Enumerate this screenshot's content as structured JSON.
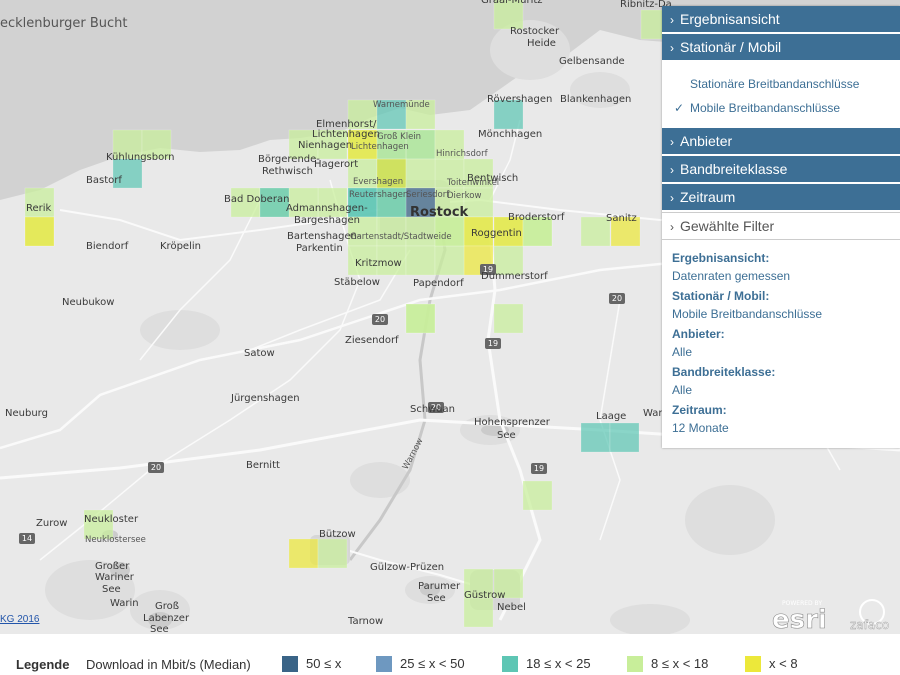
{
  "map": {
    "water_label": "ecklenburger Bucht",
    "places": [
      {
        "name": "Rerik",
        "cls": "place"
      },
      {
        "name": "Kühlungsborn",
        "cls": "place"
      },
      {
        "name": "Bastorf",
        "cls": "place"
      },
      {
        "name": "Bad Doberan",
        "cls": "place"
      },
      {
        "name": "Biendorf",
        "cls": "place"
      },
      {
        "name": "Kröpelin",
        "cls": "place"
      },
      {
        "name": "Neubukow",
        "cls": "place"
      },
      {
        "name": "Nienhagen",
        "cls": "place"
      },
      {
        "name": "Elmenhorst/",
        "cls": "place"
      },
      {
        "name": "Lichtenhagen",
        "cls": "place"
      },
      {
        "name": "Hagerort",
        "cls": "place"
      },
      {
        "name": "Börgerende-",
        "cls": "place"
      },
      {
        "name": "Rethwisch",
        "cls": "place"
      },
      {
        "name": "Admannshagen-",
        "cls": "place"
      },
      {
        "name": "Bargeshagen",
        "cls": "place"
      },
      {
        "name": "Bartenshagen-",
        "cls": "place"
      },
      {
        "name": "Parkentin",
        "cls": "place"
      },
      {
        "name": "Warnemünde",
        "cls": "place-sm"
      },
      {
        "name": "Groß Klein",
        "cls": "place-sm"
      },
      {
        "name": "Lichtenhagen",
        "cls": "place-sm"
      },
      {
        "name": "Evershagen",
        "cls": "place-sm"
      },
      {
        "name": "Reutershagen",
        "cls": "place-sm"
      },
      {
        "name": "Gartenstadt/Stadtweide",
        "cls": "place-sm"
      },
      {
        "name": "Hinrichsdorf",
        "cls": "place-sm"
      },
      {
        "name": "Toitenwinkel",
        "cls": "place-sm"
      },
      {
        "name": "Dierkow",
        "cls": "place-sm"
      },
      {
        "name": "Seriesdorf",
        "cls": "place-sm"
      },
      {
        "name": "Rostock",
        "cls": "place-lg"
      },
      {
        "name": "Bentwisch",
        "cls": "place"
      },
      {
        "name": "Broderstorf",
        "cls": "place"
      },
      {
        "name": "Roggentin",
        "cls": "place"
      },
      {
        "name": "Sanitz",
        "cls": "place"
      },
      {
        "name": "Rövershagen",
        "cls": "place"
      },
      {
        "name": "Mönchhagen",
        "cls": "place"
      },
      {
        "name": "Blankenhagen",
        "cls": "place"
      },
      {
        "name": "Gelbensande",
        "cls": "place"
      },
      {
        "name": "Rostocker",
        "cls": "place"
      },
      {
        "name": "Heide",
        "cls": "place"
      },
      {
        "name": "Kritzmow",
        "cls": "place"
      },
      {
        "name": "Stäbelow",
        "cls": "place"
      },
      {
        "name": "Papendorf",
        "cls": "place"
      },
      {
        "name": "Dummerstorf",
        "cls": "place"
      },
      {
        "name": "Ziesendorf",
        "cls": "place"
      },
      {
        "name": "Satow",
        "cls": "place"
      },
      {
        "name": "Jürgenshagen",
        "cls": "place"
      },
      {
        "name": "Neuburg",
        "cls": "place"
      },
      {
        "name": "Schwaan",
        "cls": "place"
      },
      {
        "name": "Hohensprenzer",
        "cls": "place"
      },
      {
        "name": "See",
        "cls": "place"
      },
      {
        "name": "Laage",
        "cls": "place"
      },
      {
        "name": "Wardo",
        "cls": "place"
      },
      {
        "name": "Bernitt",
        "cls": "place"
      },
      {
        "name": "Zurow",
        "cls": "place"
      },
      {
        "name": "Neukloster",
        "cls": "place"
      },
      {
        "name": "Neuklostersee",
        "cls": "place-sm"
      },
      {
        "name": "Bützow",
        "cls": "place"
      },
      {
        "name": "Gülzow-Prüzen",
        "cls": "place"
      },
      {
        "name": "Großer",
        "cls": "place"
      },
      {
        "name": "Wariner",
        "cls": "place"
      },
      {
        "name": "See",
        "cls": "place"
      },
      {
        "name": "Warin",
        "cls": "place"
      },
      {
        "name": "Groß",
        "cls": "place"
      },
      {
        "name": "Labenzer",
        "cls": "place"
      },
      {
        "name": "See",
        "cls": "place"
      },
      {
        "name": "Parumer",
        "cls": "place"
      },
      {
        "name": "See",
        "cls": "place"
      },
      {
        "name": "Güstrow",
        "cls": "place"
      },
      {
        "name": "Nebel",
        "cls": "place"
      },
      {
        "name": "Tarnow",
        "cls": "place"
      },
      {
        "name": "Ribnitz-Da",
        "cls": "place"
      },
      {
        "name": "Graal-Müritz",
        "cls": "place"
      },
      {
        "name": "Warnow",
        "cls": "place-sm"
      }
    ],
    "road_shields": [
      "20",
      "20",
      "20",
      "19",
      "19",
      "14",
      "20",
      "19"
    ],
    "cells": [
      {
        "col": "#c8ee9a"
      },
      {
        "col": "#c8ee9a"
      },
      {
        "col": "#c8ee9a"
      },
      {
        "col": "#5ec6b4"
      },
      {
        "col": "#c8ee9a"
      },
      {
        "col": "#ece83a"
      },
      {
        "col": "#c8ee9a"
      },
      {
        "col": "#5ec6b4"
      },
      {
        "col": "#c8ee9a"
      },
      {
        "col": "#c8ee9a"
      },
      {
        "col": "#5ec6b4"
      },
      {
        "col": "#5ec6b4"
      },
      {
        "col": "#c8ee9a"
      },
      {
        "col": "#c8ee9a"
      },
      {
        "col": "#c8ee9a"
      },
      {
        "col": "#5ec6b4"
      },
      {
        "col": "#c8ee9a"
      },
      {
        "col": "#c8ee9a"
      },
      {
        "col": "#c8ee9a"
      },
      {
        "col": "#c8ee9a"
      },
      {
        "col": "#5ec6b4"
      },
      {
        "col": "#ece83a"
      },
      {
        "col": "#c8ee9a"
      },
      {
        "col": "#c8ee9a"
      },
      {
        "col": "#c8ee9a"
      },
      {
        "col": "#c8ee9a"
      },
      {
        "col": "#c8ee9a"
      },
      {
        "col": "#c8ee9a"
      },
      {
        "col": "#5ec6b4"
      },
      {
        "col": "#5ec6b4"
      },
      {
        "col": "#c8ee9a"
      },
      {
        "col": "#c8ee9a"
      },
      {
        "col": "#c8ee9a"
      },
      {
        "col": "#c8ee9a"
      },
      {
        "col": "#c8ee9a"
      },
      {
        "col": "#5ec6b4"
      },
      {
        "col": "#3a6487"
      },
      {
        "col": "#c8ee9a"
      },
      {
        "col": "#c8ee9a"
      },
      {
        "col": "#c8ee9a"
      },
      {
        "col": "#c8ee9a"
      },
      {
        "col": "#c8ee9a"
      },
      {
        "col": "#c8ee9a"
      },
      {
        "col": "#c8ee9a"
      },
      {
        "col": "#c8ee9a"
      },
      {
        "col": "#ece83a"
      },
      {
        "col": "#ece83a"
      },
      {
        "col": "#c8ee9a"
      },
      {
        "col": "#c8ee9a"
      },
      {
        "col": "#c8ee9a"
      },
      {
        "col": "#ece83a"
      },
      {
        "col": "#c8ee9a"
      },
      {
        "col": "#c8ee9a"
      },
      {
        "col": "#c8ee9a"
      },
      {
        "col": "#c8ee9a"
      },
      {
        "col": "#c8ee9a"
      },
      {
        "col": "#5ec6b4"
      },
      {
        "col": "#5ec6b4"
      },
      {
        "col": "#5ec6b4"
      },
      {
        "col": "#c8ee9a"
      },
      {
        "col": "#c8ee9a"
      },
      {
        "col": "#ece83a"
      },
      {
        "col": "#ece83a"
      },
      {
        "col": "#c8ee9a"
      },
      {
        "col": "#ece83a"
      },
      {
        "col": "#c8ee9a"
      },
      {
        "col": "#c8ee9a"
      },
      {
        "col": "#c8ee9a"
      },
      {
        "col": "#c8ee9a"
      },
      {
        "col": "#c8ee9a"
      }
    ],
    "copyright": "KG 2016",
    "esri_caption": "POWERED BY",
    "esri": "esri",
    "zafaco": "zafaco"
  },
  "panel": {
    "sections": [
      {
        "label": "Ergebnisansicht"
      },
      {
        "label": "Stationär / Mobil"
      }
    ],
    "options": [
      {
        "label": "Stationäre Breitbandanschlüsse",
        "checked": ""
      },
      {
        "label": "Mobile Breitbandanschlüsse",
        "checked": "✓"
      }
    ],
    "sections2": [
      {
        "label": "Anbieter"
      },
      {
        "label": "Bandbreiteklasse"
      },
      {
        "label": "Zeitraum"
      }
    ],
    "selected_filter_label": "Gewählte Filter",
    "filters": [
      {
        "label": "Ergebnisansicht:",
        "value": "Datenraten gemessen"
      },
      {
        "label": "Stationär / Mobil:",
        "value": "Mobile Breitbandanschlüsse"
      },
      {
        "label": "Anbieter:",
        "value": "Alle"
      },
      {
        "label": "Bandbreiteklasse:",
        "value": "Alle"
      },
      {
        "label": "Zeitraum:",
        "value": "12 Monate"
      }
    ]
  },
  "legend": {
    "title": "Legende",
    "subtitle": "Download in Mbit/s (Median)",
    "items": [
      {
        "label": "50 ≤ x",
        "color": "#3a6487"
      },
      {
        "label": "25 ≤ x < 50",
        "color": "#6e98c0"
      },
      {
        "label": "18 ≤ x < 25",
        "color": "#5ec6b4"
      },
      {
        "label": "8 ≤ x < 18",
        "color": "#c8ee9a"
      },
      {
        "label": "x < 8",
        "color": "#ece83a"
      }
    ]
  }
}
